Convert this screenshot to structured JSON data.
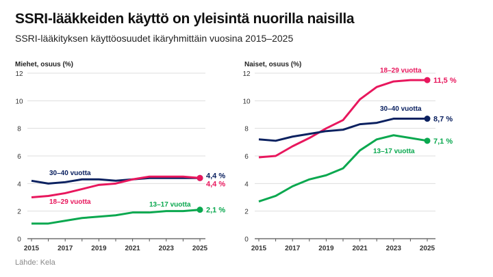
{
  "title": "SSRI-lääkkeiden käyttö on yleisintä nuorilla naisilla",
  "subtitle": "SSRI-lääkityksen käyttöosuudet ikäryhmittäin vuosina 2015–2025",
  "source": "Lähde: Kela",
  "chart_data": [
    {
      "type": "line",
      "ylabel": "Miehet, osuus (%)",
      "ylim": [
        0,
        12
      ],
      "yticks": [
        "0",
        "2",
        "4",
        "6",
        "8",
        "10",
        "12"
      ],
      "x": [
        2015,
        2016,
        2017,
        2018,
        2019,
        2020,
        2021,
        2022,
        2023,
        2024,
        2025
      ],
      "xticks": [
        "2015",
        "2017",
        "2019",
        "2021",
        "2023",
        "2025"
      ],
      "grid": true,
      "series": [
        {
          "name": "30–40 vuotta",
          "color": "#0b2160",
          "end_label": "4,4 %",
          "values": [
            4.2,
            4.0,
            4.1,
            4.3,
            4.3,
            4.2,
            4.3,
            4.4,
            4.4,
            4.4,
            4.4
          ]
        },
        {
          "name": "18–29 vuotta",
          "color": "#e8175d",
          "end_label": "4,4 %",
          "values": [
            3.0,
            3.1,
            3.3,
            3.6,
            3.9,
            4.0,
            4.3,
            4.5,
            4.5,
            4.5,
            4.4
          ]
        },
        {
          "name": "13–17 vuotta",
          "color": "#0aa84f",
          "end_label": "2,1 %",
          "values": [
            1.1,
            1.1,
            1.3,
            1.5,
            1.6,
            1.7,
            1.9,
            1.9,
            2.0,
            2.0,
            2.1
          ]
        }
      ]
    },
    {
      "type": "line",
      "ylabel": "Naiset, osuus (%)",
      "ylim": [
        0,
        12
      ],
      "yticks": [
        "0",
        "2",
        "4",
        "6",
        "8",
        "10",
        "12"
      ],
      "x": [
        2015,
        2016,
        2017,
        2018,
        2019,
        2020,
        2021,
        2022,
        2023,
        2024,
        2025
      ],
      "xticks": [
        "2015",
        "2017",
        "2019",
        "2021",
        "2023",
        "2025"
      ],
      "grid": true,
      "series": [
        {
          "name": "18–29 vuotta",
          "color": "#e8175d",
          "end_label": "11,5 %",
          "values": [
            5.9,
            6.0,
            6.7,
            7.3,
            8.0,
            8.6,
            10.1,
            11.0,
            11.4,
            11.5,
            11.5
          ]
        },
        {
          "name": "30–40 vuotta",
          "color": "#0b2160",
          "end_label": "8,7 %",
          "values": [
            7.2,
            7.1,
            7.4,
            7.6,
            7.8,
            7.9,
            8.3,
            8.4,
            8.7,
            8.7,
            8.7
          ]
        },
        {
          "name": "13–17 vuotta",
          "color": "#0aa84f",
          "end_label": "7,1 %",
          "values": [
            2.7,
            3.1,
            3.8,
            4.3,
            4.6,
            5.1,
            6.4,
            7.2,
            7.5,
            7.3,
            7.1
          ]
        }
      ]
    }
  ]
}
